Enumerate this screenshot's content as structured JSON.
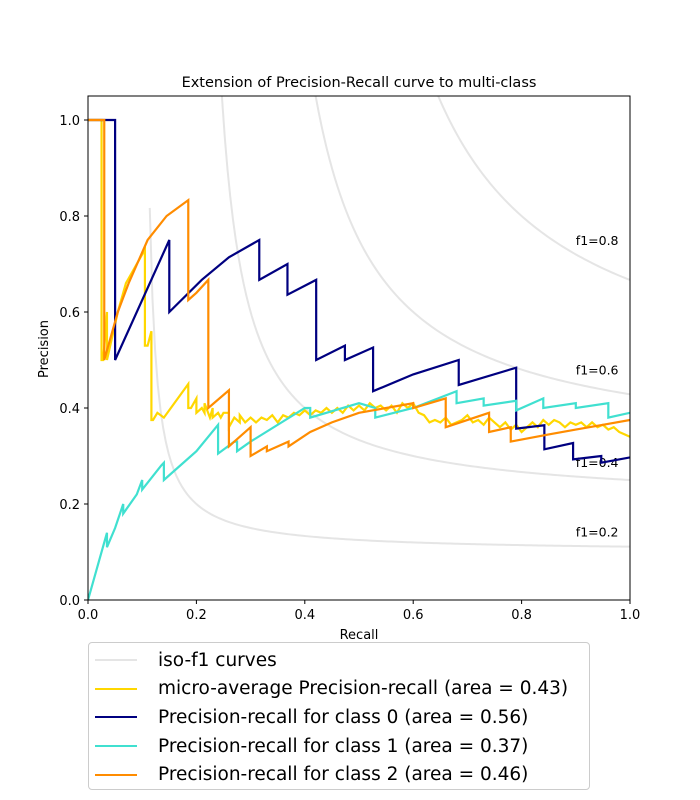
{
  "chart_data": {
    "type": "line",
    "title": "Extension of Precision-Recall curve to multi-class",
    "xlabel": "Recall",
    "ylabel": "Precision",
    "xlim": [
      0.0,
      1.0
    ],
    "ylim": [
      0.0,
      1.05
    ],
    "xticks": [
      "0.0",
      "0.2",
      "0.4",
      "0.6",
      "0.8",
      "1.0"
    ],
    "yticks": [
      "0.0",
      "0.2",
      "0.4",
      "0.6",
      "0.8",
      "1.0"
    ],
    "grid": false,
    "legend_placement": "below-plot",
    "iso_f1": {
      "values": [
        0.2,
        0.4,
        0.6,
        0.8
      ],
      "labels": [
        "f1=0.2",
        "f1=0.4",
        "f1=0.6",
        "f1=0.8"
      ],
      "color": "#e5e5e5"
    },
    "series": [
      {
        "name": "micro-average Precision-recall (area = 0.43)",
        "color": "#ffd700",
        "x": [
          0.0,
          0.025,
          0.025,
          0.028,
          0.035,
          0.035,
          0.055,
          0.07,
          0.105,
          0.105,
          0.11,
          0.117,
          0.117,
          0.12,
          0.128,
          0.14,
          0.185,
          0.185,
          0.19,
          0.2,
          0.2,
          0.21,
          0.215,
          0.215,
          0.225,
          0.23,
          0.23,
          0.24,
          0.245,
          0.25,
          0.26,
          0.26,
          0.27,
          0.28,
          0.28,
          0.29,
          0.3,
          0.31,
          0.32,
          0.33,
          0.34,
          0.35,
          0.36,
          0.37,
          0.38,
          0.39,
          0.4,
          0.41,
          0.42,
          0.43,
          0.44,
          0.45,
          0.46,
          0.47,
          0.48,
          0.49,
          0.5,
          0.51,
          0.52,
          0.53,
          0.54,
          0.55,
          0.56,
          0.57,
          0.58,
          0.59,
          0.6,
          0.61,
          0.62,
          0.63,
          0.64,
          0.65,
          0.66,
          0.67,
          0.68,
          0.69,
          0.7,
          0.71,
          0.72,
          0.73,
          0.74,
          0.75,
          0.76,
          0.77,
          0.78,
          0.79,
          0.8,
          0.81,
          0.82,
          0.83,
          0.84,
          0.85,
          0.86,
          0.87,
          0.88,
          0.89,
          0.9,
          0.91,
          0.92,
          0.93,
          0.94,
          0.95,
          0.96,
          0.97,
          0.98,
          0.99,
          1.0
        ],
        "y": [
          1.0,
          1.0,
          0.5,
          0.5,
          0.6,
          0.5,
          0.6,
          0.66,
          0.73,
          0.53,
          0.53,
          0.56,
          0.375,
          0.375,
          0.39,
          0.38,
          0.45,
          0.4,
          0.4,
          0.42,
          0.39,
          0.4,
          0.39,
          0.41,
          0.38,
          0.4,
          0.38,
          0.39,
          0.38,
          0.39,
          0.39,
          0.36,
          0.38,
          0.37,
          0.385,
          0.37,
          0.38,
          0.37,
          0.38,
          0.375,
          0.385,
          0.37,
          0.385,
          0.38,
          0.39,
          0.385,
          0.395,
          0.385,
          0.395,
          0.39,
          0.4,
          0.39,
          0.4,
          0.39,
          0.405,
          0.395,
          0.405,
          0.395,
          0.41,
          0.4,
          0.405,
          0.395,
          0.405,
          0.39,
          0.41,
          0.4,
          0.41,
          0.39,
          0.385,
          0.37,
          0.375,
          0.37,
          0.38,
          0.365,
          0.37,
          0.375,
          0.385,
          0.37,
          0.375,
          0.365,
          0.38,
          0.37,
          0.36,
          0.37,
          0.355,
          0.365,
          0.35,
          0.36,
          0.37,
          0.36,
          0.375,
          0.365,
          0.375,
          0.37,
          0.36,
          0.37,
          0.365,
          0.37,
          0.36,
          0.37,
          0.36,
          0.365,
          0.355,
          0.36,
          0.35,
          0.345,
          0.34
        ]
      },
      {
        "name": "Precision-recall for class 0 (area = 0.56)",
        "color": "#000080",
        "x": [
          0.0,
          0.05,
          0.05,
          0.15,
          0.15,
          0.21,
          0.26,
          0.316,
          0.316,
          0.368,
          0.368,
          0.421,
          0.421,
          0.474,
          0.474,
          0.526,
          0.526,
          0.6,
          0.684,
          0.684,
          0.79,
          0.79,
          0.842,
          0.842,
          0.895,
          0.895,
          0.947,
          0.947,
          1.0
        ],
        "y": [
          1.0,
          1.0,
          0.5,
          0.75,
          0.6,
          0.667,
          0.714,
          0.75,
          0.667,
          0.7,
          0.636,
          0.667,
          0.5,
          0.53,
          0.5,
          0.526,
          0.435,
          0.47,
          0.5,
          0.448,
          0.484,
          0.357,
          0.364,
          0.314,
          0.327,
          0.293,
          0.3,
          0.286,
          0.297
        ]
      },
      {
        "name": "Precision-recall for class 1 (area = 0.37)",
        "color": "#40e0d0",
        "x": [
          0.0,
          0.02,
          0.035,
          0.035,
          0.05,
          0.065,
          0.065,
          0.09,
          0.1,
          0.1,
          0.135,
          0.14,
          0.14,
          0.2,
          0.24,
          0.24,
          0.27,
          0.275,
          0.275,
          0.3,
          0.4,
          0.41,
          0.41,
          0.5,
          0.53,
          0.53,
          0.6,
          0.68,
          0.68,
          0.73,
          0.73,
          0.79,
          0.79,
          0.84,
          0.84,
          0.9,
          0.9,
          0.96,
          0.96,
          1.0
        ],
        "y": [
          0.0,
          0.08,
          0.14,
          0.11,
          0.15,
          0.2,
          0.18,
          0.22,
          0.25,
          0.23,
          0.28,
          0.286,
          0.25,
          0.31,
          0.365,
          0.305,
          0.33,
          0.33,
          0.31,
          0.33,
          0.4,
          0.4,
          0.38,
          0.41,
          0.4,
          0.38,
          0.4,
          0.435,
          0.41,
          0.42,
          0.405,
          0.415,
          0.395,
          0.42,
          0.4,
          0.41,
          0.4,
          0.41,
          0.38,
          0.39
        ]
      },
      {
        "name": "Precision-recall for class 2 (area = 0.46)",
        "color": "#ff8c00",
        "x": [
          0.0,
          0.03,
          0.03,
          0.055,
          0.075,
          0.11,
          0.145,
          0.185,
          0.185,
          0.2,
          0.222,
          0.222,
          0.26,
          0.26,
          0.27,
          0.3,
          0.3,
          0.33,
          0.33,
          0.37,
          0.37,
          0.41,
          0.45,
          0.5,
          0.55,
          0.6,
          0.6,
          0.66,
          0.66,
          0.74,
          0.74,
          0.78,
          0.78,
          0.85,
          0.9,
          0.95,
          1.0
        ],
        "y": [
          1.0,
          1.0,
          0.5,
          0.6,
          0.66,
          0.75,
          0.8,
          0.833,
          0.625,
          0.64,
          0.667,
          0.4,
          0.437,
          0.32,
          0.33,
          0.36,
          0.3,
          0.32,
          0.31,
          0.33,
          0.32,
          0.35,
          0.37,
          0.39,
          0.4,
          0.41,
          0.4,
          0.42,
          0.36,
          0.39,
          0.35,
          0.36,
          0.33,
          0.345,
          0.355,
          0.365,
          0.375
        ]
      }
    ]
  },
  "legend": {
    "items": [
      {
        "label": "iso-f1 curves",
        "color": "#e5e5e5"
      },
      {
        "label": "micro-average Precision-recall (area = 0.43)",
        "color": "#ffd700"
      },
      {
        "label": "Precision-recall for class 0 (area = 0.56)",
        "color": "#000080"
      },
      {
        "label": "Precision-recall for class 1 (area = 0.37)",
        "color": "#40e0d0"
      },
      {
        "label": "Precision-recall for class 2 (area = 0.46)",
        "color": "#ff8c00"
      }
    ]
  }
}
